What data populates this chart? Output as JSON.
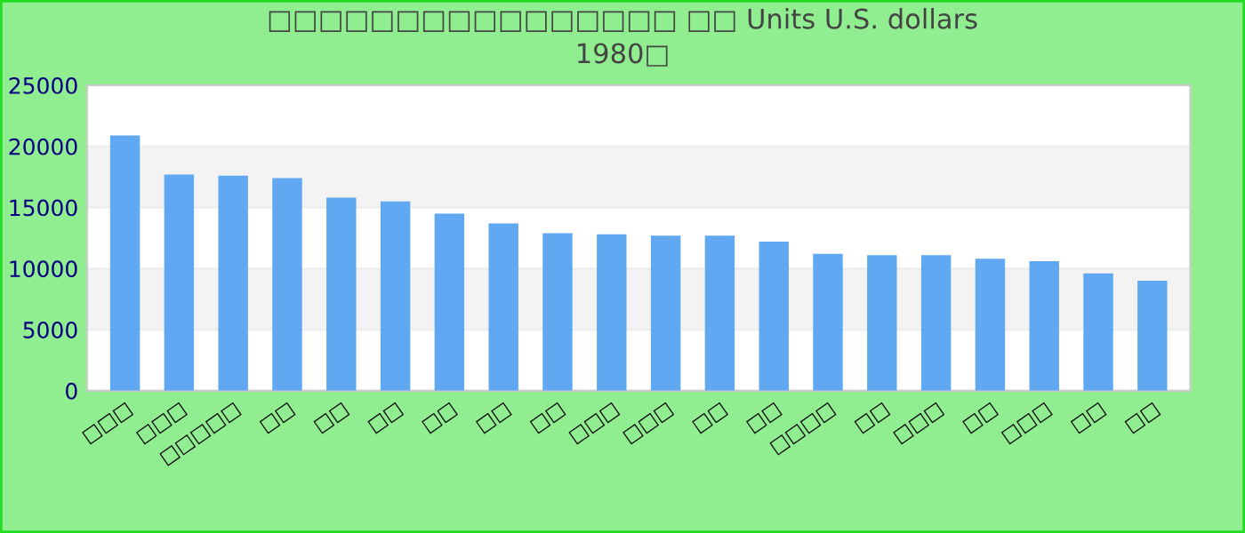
{
  "chart_data": {
    "type": "bar",
    "title": "□□□□□□□□□□□□□□□□ □□ Units U.S. dollars\n1980□",
    "categories": [
      "□□□",
      "□□□",
      "□□□□□",
      "□□",
      "□□",
      "□□",
      "□□",
      "□□",
      "□□",
      "□□□",
      "□□□",
      "□□",
      "□□",
      "□□□□",
      "□□",
      "□□□",
      "□□",
      "□□□",
      "□□",
      "□□"
    ],
    "values": [
      20900,
      17700,
      17600,
      17400,
      15800,
      15500,
      14500,
      13700,
      12900,
      12800,
      12700,
      12700,
      12200,
      11200,
      11100,
      11100,
      10800,
      10600,
      9600,
      9000
    ],
    "color": "#61a8f2",
    "ylim": [
      0,
      25000
    ],
    "yticks": [
      0,
      5000,
      10000,
      15000,
      20000,
      25000
    ],
    "grid": "y",
    "legend": false
  }
}
